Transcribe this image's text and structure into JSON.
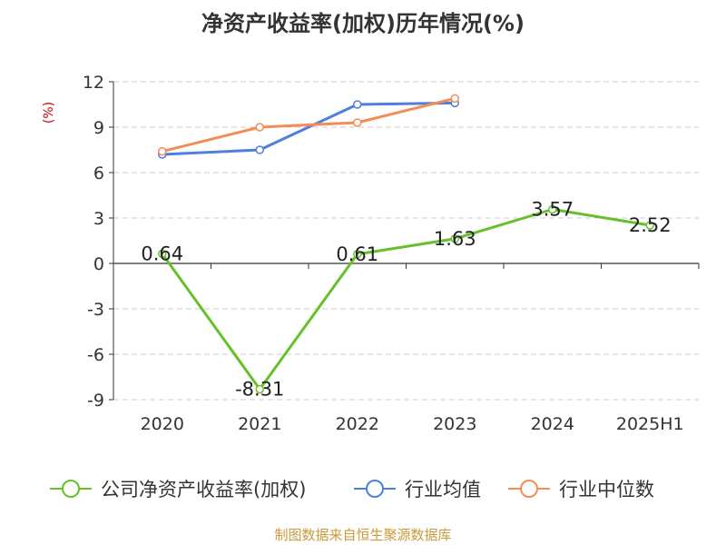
{
  "title": "净资产收益率(加权)历年情况(%)",
  "unit": "(%)",
  "source": "制图数据来自恒生聚源数据库",
  "colors": {
    "company": "#66c02a",
    "industry_avg": "#4f7fdc",
    "industry_median": "#f48c55"
  },
  "chart_data": {
    "type": "line",
    "categories": [
      "2020",
      "2021",
      "2022",
      "2023",
      "2024",
      "2025H1"
    ],
    "ylim": [
      -9,
      12
    ],
    "yticks": [
      -9,
      -6,
      -3,
      0,
      3,
      6,
      9,
      12
    ],
    "grid": true,
    "legend_position": "bottom",
    "series": [
      {
        "name": "公司净资产收益率(加权)",
        "values": [
          0.64,
          -8.31,
          0.61,
          1.63,
          3.57,
          2.52
        ],
        "labels": [
          "0.64",
          "-8.31",
          "0.61",
          "1.63",
          "3.57",
          "2.52"
        ]
      },
      {
        "name": "行业均值",
        "values": [
          7.2,
          7.5,
          10.5,
          10.6,
          null,
          null
        ]
      },
      {
        "name": "行业中位数",
        "values": [
          7.4,
          9.0,
          9.3,
          10.9,
          null,
          null
        ]
      }
    ]
  }
}
